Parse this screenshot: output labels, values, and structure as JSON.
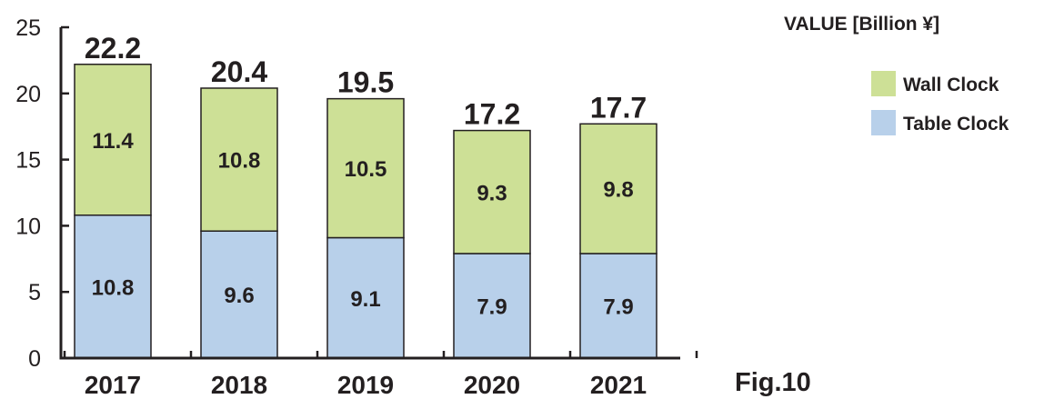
{
  "chart_data": {
    "type": "bar",
    "stacked": true,
    "categories": [
      "2017",
      "2018",
      "2019",
      "2020",
      "2021"
    ],
    "series": [
      {
        "name": "Table Clock",
        "values": [
          10.8,
          9.6,
          9.1,
          7.9,
          7.9
        ],
        "color": "#b8d0ea"
      },
      {
        "name": "Wall Clock",
        "values": [
          11.4,
          10.8,
          10.5,
          9.3,
          9.8
        ],
        "color": "#cde096"
      }
    ],
    "totals": [
      "22.2",
      "20.4",
      "19.5",
      "17.2",
      "17.7"
    ],
    "segment_labels": [
      [
        "10.8",
        "9.6",
        "9.1",
        "7.9",
        "7.9"
      ],
      [
        "11.4",
        "10.8",
        "10.5",
        "9.3",
        "9.8"
      ]
    ],
    "ylabel": "VALUE [Billion ¥]",
    "ylim": [
      0,
      25
    ],
    "yticks": [
      "0",
      "5",
      "10",
      "15",
      "20",
      "25"
    ],
    "legend_position": "right",
    "grid": false
  },
  "figure_label": "Fig.10"
}
